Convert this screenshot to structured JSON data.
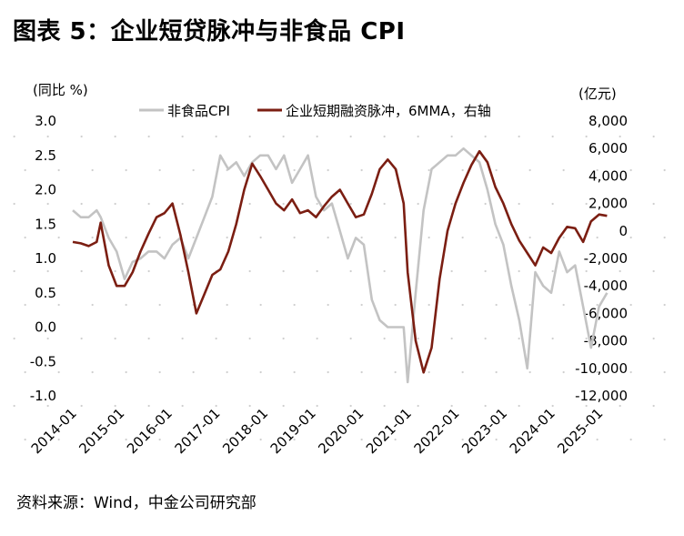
{
  "header": {
    "title": "图表 5：企业短贷脉冲与非食品 CPI"
  },
  "footer": {
    "source": "资料来源：Wind，中金公司研究部"
  },
  "colors": {
    "cpi": "#c3c3c3",
    "pulse": "#7b1e12",
    "grid_dots": "#cfcfcf"
  },
  "chart_data": {
    "type": "line",
    "left_axis": {
      "unit_label": "(同比 %)",
      "ylim": [
        -1.0,
        3.0
      ],
      "ticks": [
        "3.0",
        "2.5",
        "2.0",
        "1.5",
        "1.0",
        "0.5",
        "0.0",
        "-0.5",
        "-1.0"
      ]
    },
    "right_axis": {
      "unit_label": "(亿元)",
      "ylim": [
        -12000,
        8000
      ],
      "ticks": [
        "8,000",
        "6,000",
        "4,000",
        "2,000",
        "0",
        "-2,000",
        "-4,000",
        "-6,000",
        "-8,000",
        "-10,000",
        "-12,000"
      ]
    },
    "x_ticks": [
      "2014-01",
      "2015-01",
      "2016-01",
      "2017-01",
      "2018-01",
      "2019-01",
      "2020-01",
      "2021-01",
      "2022-01",
      "2023-01",
      "2024-01",
      "2025-01"
    ],
    "x_range": [
      "2014-01",
      "2025-03"
    ],
    "legend_position": "top",
    "series": [
      {
        "name": "非食品CPI",
        "axis": "left",
        "points": [
          [
            "2014-01",
            1.7
          ],
          [
            "2014-03",
            1.6
          ],
          [
            "2014-05",
            1.6
          ],
          [
            "2014-07",
            1.7
          ],
          [
            "2014-08",
            1.6
          ],
          [
            "2014-10",
            1.3
          ],
          [
            "2014-12",
            1.1
          ],
          [
            "2015-02",
            0.7
          ],
          [
            "2015-04",
            0.95
          ],
          [
            "2015-06",
            1.0
          ],
          [
            "2015-08",
            1.1
          ],
          [
            "2015-10",
            1.1
          ],
          [
            "2015-12",
            1.0
          ],
          [
            "2016-02",
            1.2
          ],
          [
            "2016-04",
            1.3
          ],
          [
            "2016-06",
            1.0
          ],
          [
            "2016-08",
            1.3
          ],
          [
            "2016-10",
            1.6
          ],
          [
            "2016-12",
            1.9
          ],
          [
            "2017-02",
            2.5
          ],
          [
            "2017-04",
            2.3
          ],
          [
            "2017-06",
            2.4
          ],
          [
            "2017-08",
            2.2
          ],
          [
            "2017-10",
            2.4
          ],
          [
            "2017-12",
            2.5
          ],
          [
            "2018-02",
            2.5
          ],
          [
            "2018-04",
            2.3
          ],
          [
            "2018-06",
            2.5
          ],
          [
            "2018-08",
            2.1
          ],
          [
            "2018-10",
            2.3
          ],
          [
            "2018-12",
            2.5
          ],
          [
            "2019-02",
            1.9
          ],
          [
            "2019-04",
            1.7
          ],
          [
            "2019-06",
            1.8
          ],
          [
            "2019-08",
            1.4
          ],
          [
            "2019-10",
            1.0
          ],
          [
            "2019-12",
            1.3
          ],
          [
            "2020-02",
            1.2
          ],
          [
            "2020-04",
            0.4
          ],
          [
            "2020-06",
            0.1
          ],
          [
            "2020-08",
            0.0
          ],
          [
            "2020-10",
            0.0
          ],
          [
            "2020-12",
            0.0
          ],
          [
            "2021-01",
            -0.8
          ],
          [
            "2021-03",
            0.5
          ],
          [
            "2021-05",
            1.7
          ],
          [
            "2021-07",
            2.3
          ],
          [
            "2021-09",
            2.4
          ],
          [
            "2021-11",
            2.5
          ],
          [
            "2022-01",
            2.5
          ],
          [
            "2022-03",
            2.6
          ],
          [
            "2022-05",
            2.5
          ],
          [
            "2022-07",
            2.4
          ],
          [
            "2022-09",
            2.0
          ],
          [
            "2022-11",
            1.5
          ],
          [
            "2023-01",
            1.2
          ],
          [
            "2023-03",
            0.6
          ],
          [
            "2023-05",
            0.1
          ],
          [
            "2023-07",
            -0.6
          ],
          [
            "2023-09",
            0.8
          ],
          [
            "2023-11",
            0.6
          ],
          [
            "2024-01",
            0.5
          ],
          [
            "2024-03",
            1.1
          ],
          [
            "2024-05",
            0.8
          ],
          [
            "2024-07",
            0.9
          ],
          [
            "2024-09",
            0.3
          ],
          [
            "2024-11",
            -0.3
          ],
          [
            "2025-01",
            0.3
          ],
          [
            "2025-03",
            0.5
          ]
        ]
      },
      {
        "name": "企业短期融资脉冲，6MMA，右轴",
        "axis": "right",
        "points": [
          [
            "2014-01",
            -800
          ],
          [
            "2014-03",
            -900
          ],
          [
            "2014-05",
            -1100
          ],
          [
            "2014-07",
            -800
          ],
          [
            "2014-08",
            600
          ],
          [
            "2014-10",
            -2500
          ],
          [
            "2014-12",
            -4000
          ],
          [
            "2015-02",
            -4000
          ],
          [
            "2015-04",
            -3000
          ],
          [
            "2015-06",
            -1500
          ],
          [
            "2015-08",
            -200
          ],
          [
            "2015-10",
            1000
          ],
          [
            "2015-12",
            1300
          ],
          [
            "2016-02",
            2000
          ],
          [
            "2016-04",
            -300
          ],
          [
            "2016-06",
            -3000
          ],
          [
            "2016-08",
            -6000
          ],
          [
            "2016-10",
            -4600
          ],
          [
            "2016-12",
            -3200
          ],
          [
            "2017-02",
            -2800
          ],
          [
            "2017-04",
            -1500
          ],
          [
            "2017-06",
            500
          ],
          [
            "2017-08",
            3000
          ],
          [
            "2017-10",
            4900
          ],
          [
            "2017-12",
            4000
          ],
          [
            "2018-02",
            3000
          ],
          [
            "2018-04",
            2000
          ],
          [
            "2018-06",
            1500
          ],
          [
            "2018-08",
            2300
          ],
          [
            "2018-10",
            1300
          ],
          [
            "2018-12",
            1500
          ],
          [
            "2019-02",
            1000
          ],
          [
            "2019-04",
            1800
          ],
          [
            "2019-06",
            2500
          ],
          [
            "2019-08",
            3000
          ],
          [
            "2019-10",
            2000
          ],
          [
            "2019-12",
            1000
          ],
          [
            "2020-02",
            1200
          ],
          [
            "2020-04",
            2700
          ],
          [
            "2020-06",
            4500
          ],
          [
            "2020-08",
            5200
          ],
          [
            "2020-10",
            4500
          ],
          [
            "2020-12",
            2000
          ],
          [
            "2021-01",
            -3000
          ],
          [
            "2021-03",
            -8000
          ],
          [
            "2021-05",
            -10300
          ],
          [
            "2021-07",
            -8500
          ],
          [
            "2021-09",
            -3500
          ],
          [
            "2021-11",
            0
          ],
          [
            "2022-01",
            2000
          ],
          [
            "2022-03",
            3500
          ],
          [
            "2022-05",
            4800
          ],
          [
            "2022-07",
            5800
          ],
          [
            "2022-09",
            5000
          ],
          [
            "2022-11",
            3200
          ],
          [
            "2023-01",
            2000
          ],
          [
            "2023-03",
            500
          ],
          [
            "2023-05",
            -700
          ],
          [
            "2023-07",
            -1600
          ],
          [
            "2023-09",
            -2500
          ],
          [
            "2023-11",
            -1200
          ],
          [
            "2024-01",
            -1600
          ],
          [
            "2024-03",
            -500
          ],
          [
            "2024-05",
            300
          ],
          [
            "2024-07",
            200
          ],
          [
            "2024-09",
            -800
          ],
          [
            "2024-11",
            700
          ],
          [
            "2025-01",
            1200
          ],
          [
            "2025-03",
            1100
          ]
        ]
      }
    ]
  }
}
